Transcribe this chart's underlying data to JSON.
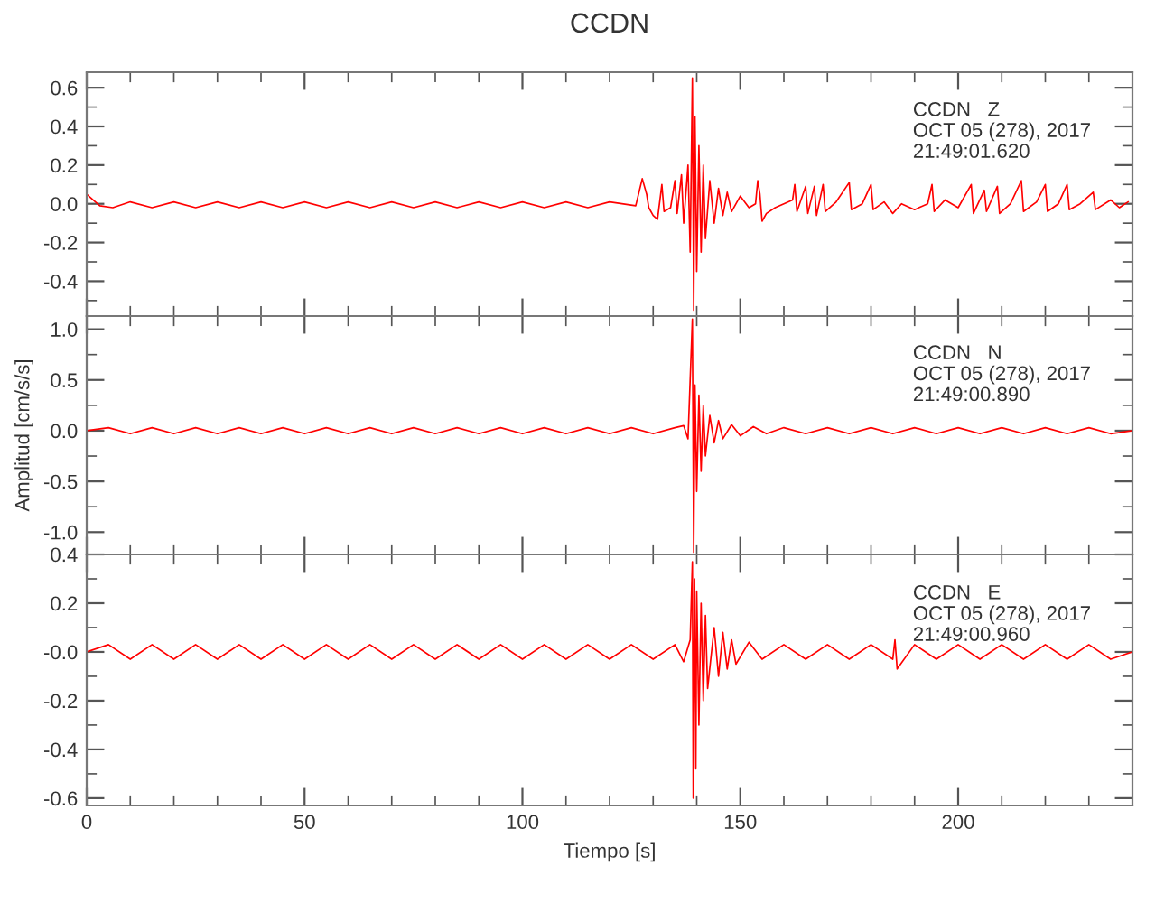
{
  "chart_data": [
    {
      "type": "line",
      "title": "CCDN",
      "tick_labels": "y",
      "xlim": [
        0,
        240
      ],
      "xticks": [
        0,
        50,
        100,
        150,
        200
      ],
      "ylim": [
        -0.58,
        0.68
      ],
      "yticks": [
        0.6,
        0.4,
        0.2,
        {
          "value": 0,
          "label": "0.0"
        },
        -0.2,
        -0.4
      ],
      "grid": false,
      "legend": false,
      "annotations": [
        "CCDN   Z\nOCT 05 (278), 2017\n21:49:01.620"
      ],
      "series": [
        {
          "color": "#ff0000",
          "x": [
            0,
            1,
            3,
            6,
            10,
            15,
            20,
            25,
            30,
            35,
            40,
            45,
            50,
            55,
            60,
            65,
            70,
            75,
            80,
            85,
            90,
            95,
            100,
            105,
            110,
            115,
            120,
            126,
            127.5,
            128.5,
            129,
            130,
            131,
            132,
            132.5,
            134,
            135,
            135.5,
            136.5,
            137,
            138,
            138.5,
            139,
            139.3,
            139.6,
            140,
            140.5,
            141,
            141.5,
            142,
            143,
            144,
            145,
            146,
            147,
            148,
            150,
            152,
            153.5,
            154,
            154.5,
            155,
            156,
            158,
            160,
            162,
            162.5,
            163,
            165,
            165.5,
            167,
            167.5,
            169,
            169.5,
            172,
            175,
            175.5,
            178,
            180,
            180.5,
            183,
            185,
            187,
            190,
            193,
            194,
            194.5,
            197,
            200,
            203,
            203.5,
            206,
            206.5,
            209,
            209.5,
            212,
            214.5,
            215,
            218,
            220,
            220.5,
            223,
            225,
            225.5,
            228,
            231,
            231.5,
            235,
            237,
            239
          ],
          "values": [
            0.05,
            0.03,
            -0.01,
            -0.02,
            0.01,
            -0.02,
            0.01,
            -0.02,
            0.01,
            -0.02,
            0.01,
            -0.02,
            0.01,
            -0.02,
            0.01,
            -0.02,
            0.01,
            -0.02,
            0.01,
            -0.02,
            0.01,
            -0.02,
            0.01,
            -0.02,
            0.01,
            -0.02,
            0.01,
            -0.01,
            0.13,
            0.05,
            -0.02,
            -0.06,
            -0.08,
            0.1,
            -0.04,
            -0.02,
            0.12,
            -0.05,
            0.15,
            -0.1,
            0.2,
            -0.25,
            0.65,
            -0.55,
            0.45,
            -0.35,
            0.3,
            -0.25,
            0.2,
            -0.18,
            0.12,
            -0.1,
            0.08,
            -0.06,
            0.06,
            -0.04,
            0.04,
            -0.02,
            0.0,
            0.12,
            0.05,
            -0.09,
            -0.05,
            -0.02,
            0.0,
            0.02,
            0.1,
            -0.04,
            0.09,
            -0.05,
            0.09,
            -0.06,
            0.1,
            -0.04,
            0.01,
            0.11,
            -0.03,
            0.0,
            0.1,
            -0.03,
            0.01,
            -0.05,
            0.0,
            -0.03,
            0.0,
            0.1,
            -0.04,
            0.02,
            -0.02,
            0.1,
            -0.05,
            0.07,
            -0.04,
            0.09,
            -0.05,
            0.0,
            0.12,
            -0.04,
            0.01,
            0.1,
            -0.04,
            0.0,
            0.1,
            -0.03,
            0.0,
            0.06,
            -0.03,
            0.02,
            -0.02,
            0.01
          ]
        }
      ]
    },
    {
      "type": "line",
      "ylabel": "Amplitud [cm/s/s]",
      "tick_labels": "y",
      "xlim": [
        0,
        240
      ],
      "xticks": [
        0,
        50,
        100,
        150,
        200
      ],
      "ylim": [
        -1.22,
        1.13
      ],
      "yticks": [
        {
          "value": 1,
          "label": "1.0"
        },
        0.5,
        {
          "value": 0,
          "label": "0.0"
        },
        -0.5,
        {
          "value": -1,
          "label": "-1.0"
        }
      ],
      "grid": false,
      "legend": false,
      "annotations": [
        "CCDN   N\nOCT 05 (278), 2017\n21:49:00.890"
      ],
      "series": [
        {
          "color": "#ff0000",
          "x": [
            0,
            5,
            10,
            15,
            20,
            25,
            30,
            35,
            40,
            45,
            50,
            55,
            60,
            65,
            70,
            75,
            80,
            85,
            90,
            95,
            100,
            105,
            110,
            115,
            120,
            125,
            130,
            135,
            137,
            138,
            139,
            139.3,
            139.6,
            140,
            140.5,
            141,
            141.5,
            142,
            143,
            144,
            145,
            146,
            148,
            150,
            153,
            156,
            160,
            165,
            170,
            175,
            180,
            185,
            190,
            195,
            200,
            205,
            210,
            215,
            220,
            225,
            230,
            235,
            240
          ],
          "values": [
            0.0,
            0.03,
            -0.03,
            0.03,
            -0.03,
            0.03,
            -0.03,
            0.03,
            -0.03,
            0.03,
            -0.03,
            0.03,
            -0.03,
            0.03,
            -0.03,
            0.03,
            -0.03,
            0.03,
            -0.03,
            0.03,
            -0.03,
            0.03,
            -0.03,
            0.03,
            -0.03,
            0.03,
            -0.03,
            0.03,
            0.05,
            -0.08,
            1.1,
            -1.2,
            0.45,
            -0.6,
            0.35,
            -0.4,
            0.25,
            -0.25,
            0.15,
            -0.12,
            0.1,
            -0.08,
            0.06,
            -0.05,
            0.04,
            -0.03,
            0.03,
            -0.03,
            0.03,
            -0.03,
            0.03,
            -0.03,
            0.03,
            -0.03,
            0.03,
            -0.03,
            0.03,
            -0.03,
            0.03,
            -0.03,
            0.03,
            -0.03,
            0.0
          ]
        }
      ]
    },
    {
      "type": "line",
      "xlabel": "Tiempo [s]",
      "xlim": [
        0,
        240
      ],
      "xticks": [
        0,
        50,
        100,
        150,
        200
      ],
      "ylim": [
        -0.63,
        0.4
      ],
      "yticks": [
        0.4,
        0.2,
        {
          "value": 0,
          "label": "-0.0"
        },
        -0.2,
        -0.4,
        -0.6
      ],
      "grid": false,
      "legend": false,
      "annotations": [
        "CCDN   E\nOCT 05 (278), 2017\n21:49:00.960"
      ],
      "series": [
        {
          "color": "#ff0000",
          "x": [
            0,
            5,
            10,
            15,
            20,
            25,
            30,
            35,
            40,
            45,
            50,
            55,
            60,
            65,
            70,
            75,
            80,
            85,
            90,
            95,
            100,
            105,
            110,
            115,
            120,
            125,
            130,
            135,
            137,
            138.5,
            139,
            139.2,
            139.5,
            139.8,
            140,
            140.5,
            141,
            141.5,
            142,
            142.5,
            144,
            145,
            146,
            147,
            148,
            149,
            152,
            155,
            160,
            165,
            170,
            175,
            180,
            185,
            185.5,
            186,
            190,
            195,
            200,
            205,
            210,
            215,
            220,
            225,
            230,
            235,
            240
          ],
          "values": [
            0.0,
            0.03,
            -0.03,
            0.03,
            -0.03,
            0.03,
            -0.03,
            0.03,
            -0.03,
            0.03,
            -0.03,
            0.03,
            -0.03,
            0.03,
            -0.03,
            0.03,
            -0.03,
            0.03,
            -0.03,
            0.03,
            -0.03,
            0.03,
            -0.03,
            0.03,
            -0.03,
            0.03,
            -0.03,
            0.03,
            -0.04,
            0.05,
            0.37,
            -0.6,
            0.3,
            -0.48,
            0.25,
            -0.3,
            0.2,
            -0.2,
            0.15,
            -0.15,
            0.1,
            -0.1,
            0.08,
            -0.07,
            0.05,
            -0.05,
            0.04,
            -0.03,
            0.03,
            -0.03,
            0.03,
            -0.03,
            0.03,
            -0.03,
            0.05,
            -0.07,
            0.03,
            -0.03,
            0.03,
            -0.03,
            0.03,
            -0.03,
            0.03,
            -0.03,
            0.03,
            -0.03,
            0.0
          ]
        }
      ]
    }
  ]
}
